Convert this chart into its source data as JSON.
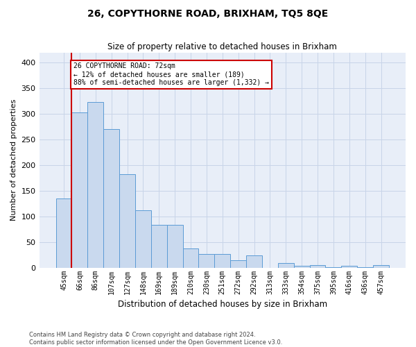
{
  "title": "26, COPYTHORNE ROAD, BRIXHAM, TQ5 8QE",
  "subtitle": "Size of property relative to detached houses in Brixham",
  "xlabel": "Distribution of detached houses by size in Brixham",
  "ylabel": "Number of detached properties",
  "bar_labels": [
    "45sqm",
    "66sqm",
    "86sqm",
    "107sqm",
    "127sqm",
    "148sqm",
    "169sqm",
    "189sqm",
    "210sqm",
    "230sqm",
    "251sqm",
    "272sqm",
    "292sqm",
    "313sqm",
    "333sqm",
    "354sqm",
    "375sqm",
    "395sqm",
    "416sqm",
    "436sqm",
    "457sqm"
  ],
  "bar_values": [
    135,
    303,
    323,
    270,
    182,
    112,
    84,
    84,
    38,
    27,
    27,
    15,
    24,
    0,
    9,
    4,
    5,
    1,
    3,
    1,
    5
  ],
  "bar_color": "#c9d9ee",
  "bar_edge_color": "#5b9bd5",
  "grid_color": "#c8d4e8",
  "background_color": "#e8eef8",
  "vline_color": "#cc0000",
  "annotation_text": "26 COPYTHORNE ROAD: 72sqm\n← 12% of detached houses are smaller (189)\n88% of semi-detached houses are larger (1,332) →",
  "annotation_box_color": "#cc0000",
  "ylim": [
    0,
    420
  ],
  "yticks": [
    0,
    50,
    100,
    150,
    200,
    250,
    300,
    350,
    400
  ],
  "footer_line1": "Contains HM Land Registry data © Crown copyright and database right 2024.",
  "footer_line2": "Contains public sector information licensed under the Open Government Licence v3.0."
}
